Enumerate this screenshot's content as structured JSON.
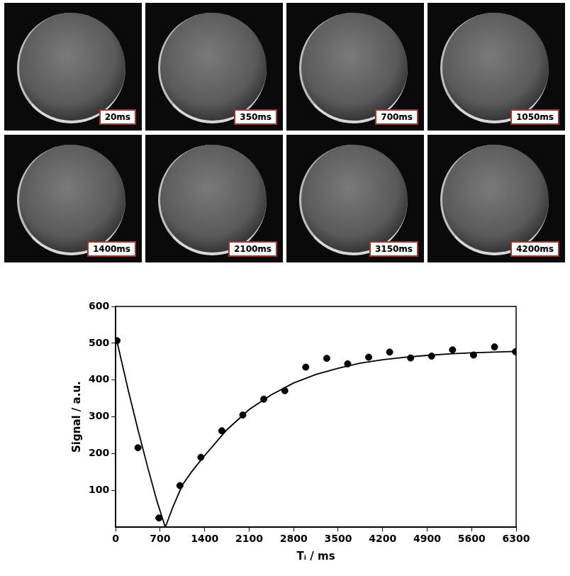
{
  "image_panels": {
    "labels": [
      "20ms",
      "350ms",
      "700ms",
      "1050ms",
      "1400ms",
      "2100ms",
      "3150ms",
      "4200ms"
    ]
  },
  "chart_data": {
    "type": "scatter",
    "x_label": "Tᵢ / ms",
    "y_label": "Signal / a.u.",
    "xlim": [
      0,
      6300
    ],
    "xticks": [
      0,
      700,
      1400,
      2100,
      2800,
      3500,
      4200,
      4900,
      5600,
      6300
    ],
    "ylim": [
      0,
      600
    ],
    "yticks": [
      100,
      200,
      300,
      400,
      500,
      600
    ],
    "grid": false,
    "series": [
      {
        "type": "scatter",
        "marker": "circle",
        "color": "#000000",
        "x": [
          20,
          350,
          680,
          1010,
          1340,
          1670,
          2000,
          2330,
          2660,
          2990,
          3320,
          3650,
          3980,
          4310,
          4640,
          4970,
          5300,
          5630,
          5960,
          6290
        ],
        "values": [
          507,
          216,
          25,
          113,
          190,
          262,
          305,
          348,
          371,
          435,
          459,
          444,
          462,
          476,
          460,
          465,
          482,
          468,
          490,
          477
        ]
      },
      {
        "type": "line",
        "line_style": "solid",
        "color": "#000000",
        "x": [
          20,
          200,
          350,
          500,
          650,
          780,
          900,
          1050,
          1200,
          1400,
          1750,
          2100,
          2450,
          2800,
          3150,
          3500,
          3850,
          4200,
          4550,
          4900,
          5250,
          5600,
          5950,
          6300
        ],
        "values": [
          505,
          370,
          265,
          165,
          70,
          0,
          55,
          115,
          152,
          195,
          265,
          320,
          360,
          392,
          415,
          432,
          446,
          455,
          462,
          467,
          471,
          474,
          476,
          478
        ]
      }
    ]
  }
}
